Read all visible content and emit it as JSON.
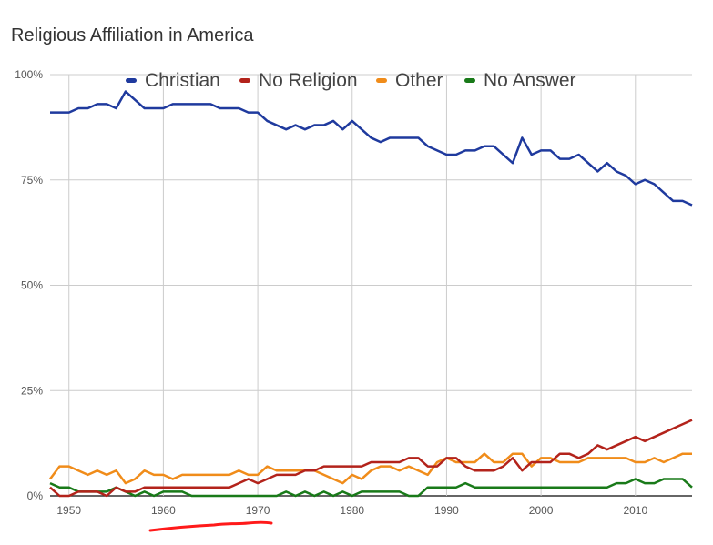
{
  "chart_data": {
    "type": "line",
    "title": "Religious Affiliation in America",
    "xlabel": "",
    "ylabel": "",
    "xlim": [
      1948,
      2016
    ],
    "ylim": [
      0,
      100
    ],
    "grid": true,
    "legend_position": "top",
    "x_ticks": [
      "1950",
      "1960",
      "1970",
      "1980",
      "1990",
      "2000",
      "2010"
    ],
    "y_ticks": [
      "0%",
      "25%",
      "50%",
      "75%",
      "100%"
    ],
    "x": [
      1948,
      1949,
      1950,
      1951,
      1952,
      1953,
      1954,
      1955,
      1956,
      1957,
      1958,
      1959,
      1960,
      1961,
      1962,
      1963,
      1964,
      1965,
      1966,
      1967,
      1968,
      1969,
      1970,
      1971,
      1972,
      1973,
      1974,
      1975,
      1976,
      1977,
      1978,
      1979,
      1980,
      1981,
      1982,
      1983,
      1984,
      1985,
      1986,
      1987,
      1988,
      1989,
      1990,
      1991,
      1992,
      1993,
      1994,
      1995,
      1996,
      1997,
      1998,
      1999,
      2000,
      2001,
      2002,
      2003,
      2004,
      2005,
      2006,
      2007,
      2008,
      2009,
      2010,
      2011,
      2012,
      2013,
      2014,
      2015,
      2016
    ],
    "series": [
      {
        "name": "Christian",
        "color": "#1f3a9e",
        "values": [
          91,
          91,
          91,
          92,
          92,
          93,
          93,
          92,
          96,
          94,
          92,
          92,
          92,
          93,
          93,
          93,
          93,
          93,
          92,
          92,
          92,
          91,
          91,
          89,
          88,
          87,
          88,
          87,
          88,
          88,
          89,
          87,
          89,
          87,
          85,
          84,
          85,
          85,
          85,
          85,
          83,
          82,
          81,
          81,
          82,
          82,
          83,
          83,
          81,
          79,
          85,
          81,
          82,
          82,
          80,
          80,
          81,
          79,
          77,
          79,
          77,
          76,
          74,
          75,
          74,
          72,
          70,
          70,
          69
        ]
      },
      {
        "name": "No Religion",
        "color": "#b3231b",
        "values": [
          2,
          0,
          0,
          1,
          1,
          1,
          0,
          2,
          1,
          1,
          2,
          2,
          2,
          2,
          2,
          2,
          2,
          2,
          2,
          2,
          3,
          4,
          3,
          4,
          5,
          5,
          5,
          6,
          6,
          7,
          7,
          7,
          7,
          7,
          8,
          8,
          8,
          8,
          9,
          9,
          7,
          7,
          9,
          9,
          7,
          6,
          6,
          6,
          7,
          9,
          6,
          8,
          8,
          8,
          10,
          10,
          9,
          10,
          12,
          11,
          12,
          13,
          14,
          13,
          14,
          15,
          16,
          17,
          18
        ]
      },
      {
        "name": "Other",
        "color": "#f08c1a",
        "values": [
          4,
          7,
          7,
          6,
          5,
          6,
          5,
          6,
          3,
          4,
          6,
          5,
          5,
          4,
          5,
          5,
          5,
          5,
          5,
          5,
          6,
          5,
          5,
          7,
          6,
          6,
          6,
          6,
          6,
          5,
          4,
          3,
          5,
          4,
          6,
          7,
          7,
          6,
          7,
          6,
          5,
          8,
          9,
          8,
          8,
          8,
          10,
          8,
          8,
          10,
          10,
          7,
          9,
          9,
          8,
          8,
          8,
          9,
          9,
          9,
          9,
          9,
          8,
          8,
          9,
          8,
          9,
          10,
          10
        ]
      },
      {
        "name": "No Answer",
        "color": "#197a19",
        "values": [
          3,
          2,
          2,
          1,
          1,
          1,
          1,
          2,
          1,
          0,
          1,
          0,
          1,
          1,
          1,
          0,
          0,
          0,
          0,
          0,
          0,
          0,
          0,
          0,
          0,
          1,
          0,
          1,
          0,
          1,
          0,
          1,
          0,
          1,
          1,
          1,
          1,
          1,
          0,
          0,
          2,
          2,
          2,
          2,
          3,
          2,
          2,
          2,
          2,
          2,
          2,
          2,
          2,
          2,
          2,
          2,
          2,
          2,
          2,
          2,
          3,
          3,
          4,
          3,
          3,
          4,
          4,
          4,
          2
        ]
      }
    ]
  }
}
